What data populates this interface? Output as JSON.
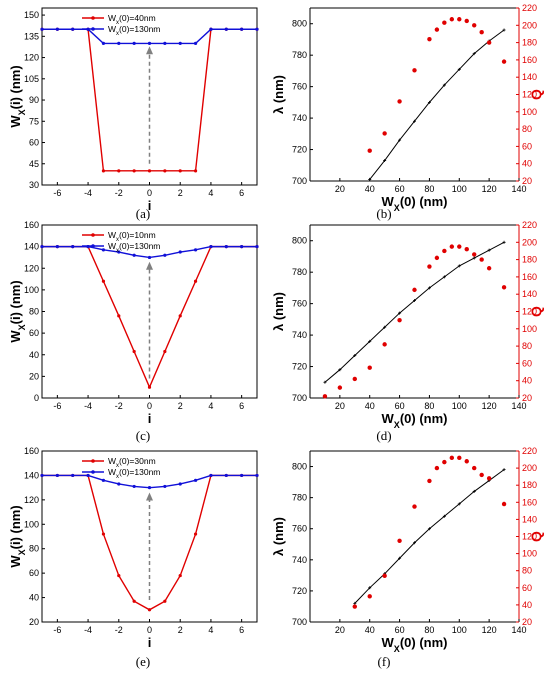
{
  "colors": {
    "red": "#e00000",
    "blue": "#1010d8",
    "black": "#000000",
    "arrow": "#808080"
  },
  "panels": [
    {
      "label": "(a)",
      "kind": "profile",
      "chart_data": {
        "type": "line",
        "xlabel": "i",
        "ylabel": "Wx(i) (nm)",
        "xlim": [
          -7,
          7
        ],
        "ylim": [
          30,
          155
        ],
        "xticks": [
          "-6",
          "-4",
          "-2",
          "0",
          "2",
          "4",
          "6"
        ],
        "yticks": [
          "30",
          "45",
          "60",
          "75",
          "90",
          "105",
          "120",
          "135",
          "150"
        ],
        "series": [
          {
            "name": "Wx(0)=40nm",
            "color": "red",
            "x": [
              -7,
              -6,
              -5,
              -4,
              -3,
              -2,
              -1,
              0,
              1,
              2,
              3,
              4,
              5,
              6,
              7
            ],
            "y": [
              140,
              140,
              140,
              140,
              40,
              40,
              40,
              40,
              40,
              40,
              40,
              140,
              140,
              140,
              140
            ]
          },
          {
            "name": "Wx(0)=130nm",
            "color": "blue",
            "x": [
              -7,
              -6,
              -5,
              -4,
              -3,
              -2,
              -1,
              0,
              1,
              2,
              3,
              4,
              5,
              6,
              7
            ],
            "y": [
              140,
              140,
              140,
              140,
              130,
              130,
              130,
              130,
              130,
              130,
              130,
              140,
              140,
              140,
              140
            ]
          }
        ],
        "arrow": {
          "x": 0,
          "from": 45,
          "to": 128
        },
        "legend": "top-left"
      }
    },
    {
      "label": "(b)",
      "kind": "dual",
      "chart_data": {
        "type": "scatter",
        "xlabel": "Wx(0) (nm)",
        "ylabel": "λ (nm)",
        "y2label": "Q",
        "xlim": [
          0,
          140
        ],
        "ylim": [
          700,
          810
        ],
        "y2lim": [
          20,
          220
        ],
        "xticks": [
          "20",
          "40",
          "60",
          "80",
          "100",
          "120",
          "140"
        ],
        "yticks": [
          "700",
          "720",
          "740",
          "760",
          "780",
          "800"
        ],
        "y2ticks": [
          "20",
          "40",
          "60",
          "80",
          "100",
          "120",
          "140",
          "160",
          "180",
          "200",
          "220"
        ],
        "lambda": {
          "x": [
            40,
            50,
            60,
            70,
            80,
            90,
            100,
            110,
            120,
            130
          ],
          "y": [
            701,
            713,
            726,
            738,
            750,
            761,
            771,
            781,
            789,
            796
          ]
        },
        "Q": {
          "x": [
            40,
            50,
            60,
            70,
            80,
            85,
            90,
            95,
            100,
            105,
            110,
            115,
            120,
            130
          ],
          "y": [
            55,
            75,
            112,
            148,
            184,
            195,
            203,
            207,
            207,
            205,
            200,
            192,
            180,
            158
          ]
        }
      }
    },
    {
      "label": "(c)",
      "kind": "profile",
      "chart_data": {
        "type": "line",
        "xlabel": "i",
        "ylabel": "Wx(i) (nm)",
        "xlim": [
          -7,
          7
        ],
        "ylim": [
          0,
          160
        ],
        "xticks": [
          "-6",
          "-4",
          "-2",
          "0",
          "2",
          "4",
          "6"
        ],
        "yticks": [
          "0",
          "20",
          "40",
          "60",
          "80",
          "100",
          "120",
          "140",
          "160"
        ],
        "series": [
          {
            "name": "Wx(0)=10nm",
            "color": "red",
            "x": [
              -7,
              -6,
              -5,
              -4,
              -3,
              -2,
              -1,
              0,
              1,
              2,
              3,
              4,
              5,
              6,
              7
            ],
            "y": [
              140,
              140,
              140,
              140,
              108,
              76,
              43,
              10,
              43,
              76,
              108,
              140,
              140,
              140,
              140
            ]
          },
          {
            "name": "Wx(0)=130nm",
            "color": "blue",
            "x": [
              -7,
              -6,
              -5,
              -4,
              -3,
              -2,
              -1,
              0,
              1,
              2,
              3,
              4,
              5,
              6,
              7
            ],
            "y": [
              140,
              140,
              140,
              140,
              137,
              135,
              132,
              130,
              132,
              135,
              137,
              140,
              140,
              140,
              140
            ]
          }
        ],
        "arrow": {
          "x": 0,
          "from": 18,
          "to": 126
        },
        "legend": "top-left"
      }
    },
    {
      "label": "(d)",
      "kind": "dual",
      "chart_data": {
        "type": "scatter",
        "xlabel": "Wx(0) (nm)",
        "ylabel": "λ (nm)",
        "y2label": "Q",
        "xlim": [
          0,
          140
        ],
        "ylim": [
          700,
          810
        ],
        "y2lim": [
          20,
          220
        ],
        "xticks": [
          "20",
          "40",
          "60",
          "80",
          "100",
          "120",
          "140"
        ],
        "yticks": [
          "700",
          "720",
          "740",
          "760",
          "780",
          "800"
        ],
        "y2ticks": [
          "20",
          "40",
          "60",
          "80",
          "100",
          "120",
          "140",
          "160",
          "180",
          "200",
          "220"
        ],
        "lambda": {
          "x": [
            10,
            20,
            30,
            40,
            50,
            60,
            70,
            80,
            90,
            100,
            110,
            120,
            130
          ],
          "y": [
            710,
            718,
            727,
            736,
            745,
            754,
            762,
            770,
            777,
            784,
            789,
            794,
            799
          ]
        },
        "Q": {
          "x": [
            10,
            20,
            30,
            40,
            50,
            60,
            70,
            80,
            85,
            90,
            95,
            100,
            105,
            110,
            115,
            120,
            130
          ],
          "y": [
            22,
            32,
            42,
            55,
            82,
            110,
            145,
            172,
            182,
            190,
            195,
            195,
            192,
            186,
            180,
            170,
            148
          ]
        }
      }
    },
    {
      "label": "(e)",
      "kind": "profile",
      "chart_data": {
        "type": "line",
        "xlabel": "i",
        "ylabel": "Wx(i) (nm)",
        "xlim": [
          -7,
          7
        ],
        "ylim": [
          20,
          160
        ],
        "xticks": [
          "-6",
          "-4",
          "-2",
          "0",
          "2",
          "4",
          "6"
        ],
        "yticks": [
          "20",
          "40",
          "60",
          "80",
          "100",
          "120",
          "140",
          "160"
        ],
        "series": [
          {
            "name": "Wx(0)=30nm",
            "color": "red",
            "x": [
              -7,
              -6,
              -5,
              -4,
              -3,
              -2,
              -1,
              0,
              1,
              2,
              3,
              4,
              5,
              6,
              7
            ],
            "y": [
              140,
              140,
              140,
              140,
              92,
              58,
              37,
              30,
              37,
              58,
              92,
              140,
              140,
              140,
              140
            ]
          },
          {
            "name": "Wx(0)=130nm",
            "color": "blue",
            "x": [
              -7,
              -6,
              -5,
              -4,
              -3,
              -2,
              -1,
              0,
              1,
              2,
              3,
              4,
              5,
              6,
              7
            ],
            "y": [
              140,
              140,
              140,
              140,
              136,
              133,
              131,
              130,
              131,
              133,
              136,
              140,
              140,
              140,
              140
            ]
          }
        ],
        "arrow": {
          "x": 0,
          "from": 38,
          "to": 126
        },
        "legend": "top-left"
      }
    },
    {
      "label": "(f)",
      "kind": "dual",
      "chart_data": {
        "type": "scatter",
        "xlabel": "Wx(0) (nm)",
        "ylabel": "λ (nm)",
        "y2label": "Q",
        "xlim": [
          0,
          140
        ],
        "ylim": [
          700,
          810
        ],
        "y2lim": [
          20,
          220
        ],
        "xticks": [
          "20",
          "40",
          "60",
          "80",
          "100",
          "120",
          "140"
        ],
        "yticks": [
          "700",
          "720",
          "740",
          "760",
          "780",
          "800"
        ],
        "y2ticks": [
          "20",
          "40",
          "60",
          "80",
          "100",
          "120",
          "140",
          "160",
          "180",
          "200",
          "220"
        ],
        "lambda": {
          "x": [
            30,
            40,
            50,
            60,
            70,
            80,
            90,
            100,
            110,
            120,
            130
          ],
          "y": [
            712,
            722,
            731,
            741,
            751,
            760,
            768,
            776,
            784,
            791,
            798
          ]
        },
        "Q": {
          "x": [
            30,
            40,
            50,
            60,
            70,
            80,
            85,
            90,
            95,
            100,
            105,
            110,
            115,
            120,
            130
          ],
          "y": [
            38,
            50,
            74,
            115,
            155,
            185,
            200,
            207,
            212,
            212,
            208,
            200,
            192,
            188,
            158
          ]
        }
      }
    }
  ]
}
